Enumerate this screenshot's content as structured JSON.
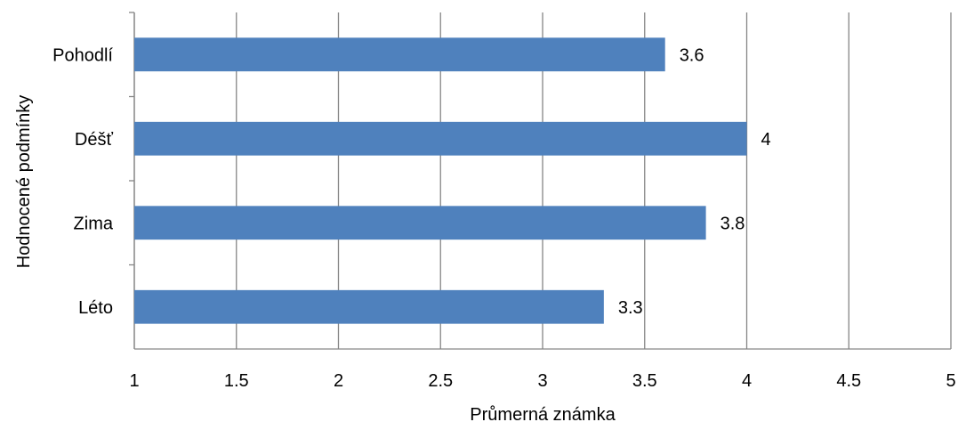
{
  "chart_data": {
    "type": "bar",
    "orientation": "horizontal",
    "title": "",
    "xlabel": "Průmerná známka",
    "ylabel": "Hodnocené podmínky",
    "categories": [
      "Pohodlí",
      "Déšť",
      "Zima",
      "Léto"
    ],
    "values": [
      3.6,
      4,
      3.8,
      3.3
    ],
    "data_labels": [
      "3.6",
      "4",
      "3.8",
      "3.3"
    ],
    "xlim": [
      1,
      5
    ],
    "x_ticks": [
      "1",
      "1.5",
      "2",
      "2.5",
      "3",
      "3.5",
      "4",
      "4.5",
      "5"
    ],
    "grid": "vertical",
    "legend": "none",
    "colors": {
      "bar": "#4f81bd",
      "grid": "#868686",
      "axis": "#868686"
    }
  }
}
